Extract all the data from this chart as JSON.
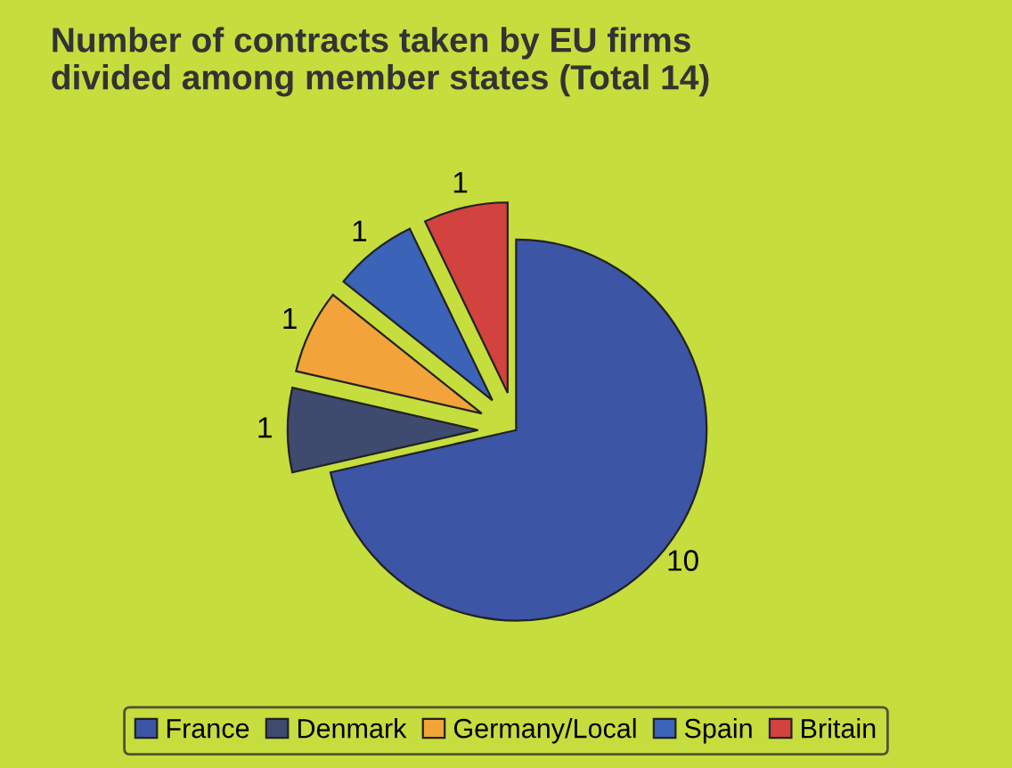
{
  "chart_data": {
    "type": "pie",
    "title": "Number of contracts taken by EU firms\ndivided among member states (Total 14)",
    "categories": [
      "France",
      "Denmark",
      "Germany/Local",
      "Spain",
      "Britain"
    ],
    "values": [
      10,
      1,
      1,
      1,
      1
    ],
    "colors": [
      "#3d55a5",
      "#3e4a6e",
      "#f2a33a",
      "#3b63b8",
      "#d2423f"
    ],
    "data_labels": true,
    "legend": "bottom"
  }
}
